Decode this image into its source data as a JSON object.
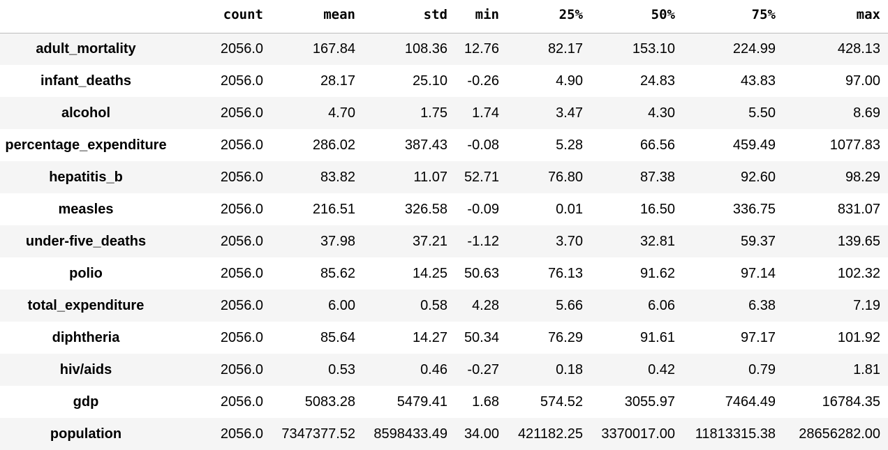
{
  "table": {
    "columns": [
      "",
      "count",
      "mean",
      "std",
      "min",
      "25%",
      "50%",
      "75%",
      "max"
    ],
    "rows": [
      {
        "label": "adult_mortality",
        "values": [
          "2056.0",
          "167.84",
          "108.36",
          "12.76",
          "82.17",
          "153.10",
          "224.99",
          "428.13"
        ]
      },
      {
        "label": "infant_deaths",
        "values": [
          "2056.0",
          "28.17",
          "25.10",
          "-0.26",
          "4.90",
          "24.83",
          "43.83",
          "97.00"
        ]
      },
      {
        "label": "alcohol",
        "values": [
          "2056.0",
          "4.70",
          "1.75",
          "1.74",
          "3.47",
          "4.30",
          "5.50",
          "8.69"
        ]
      },
      {
        "label": "percentage_expenditure",
        "values": [
          "2056.0",
          "286.02",
          "387.43",
          "-0.08",
          "5.28",
          "66.56",
          "459.49",
          "1077.83"
        ]
      },
      {
        "label": "hepatitis_b",
        "values": [
          "2056.0",
          "83.82",
          "11.07",
          "52.71",
          "76.80",
          "87.38",
          "92.60",
          "98.29"
        ]
      },
      {
        "label": "measles",
        "values": [
          "2056.0",
          "216.51",
          "326.58",
          "-0.09",
          "0.01",
          "16.50",
          "336.75",
          "831.07"
        ]
      },
      {
        "label": "under-five_deaths",
        "values": [
          "2056.0",
          "37.98",
          "37.21",
          "-1.12",
          "3.70",
          "32.81",
          "59.37",
          "139.65"
        ]
      },
      {
        "label": "polio",
        "values": [
          "2056.0",
          "85.62",
          "14.25",
          "50.63",
          "76.13",
          "91.62",
          "97.14",
          "102.32"
        ]
      },
      {
        "label": "total_expenditure",
        "values": [
          "2056.0",
          "6.00",
          "0.58",
          "4.28",
          "5.66",
          "6.06",
          "6.38",
          "7.19"
        ]
      },
      {
        "label": "diphtheria",
        "values": [
          "2056.0",
          "85.64",
          "14.27",
          "50.34",
          "76.29",
          "91.61",
          "97.17",
          "101.92"
        ]
      },
      {
        "label": "hiv/aids",
        "values": [
          "2056.0",
          "0.53",
          "0.46",
          "-0.27",
          "0.18",
          "0.42",
          "0.79",
          "1.81"
        ]
      },
      {
        "label": "gdp",
        "values": [
          "2056.0",
          "5083.28",
          "5479.41",
          "1.68",
          "574.52",
          "3055.97",
          "7464.49",
          "16784.35"
        ]
      },
      {
        "label": "population",
        "values": [
          "2056.0",
          "7347377.52",
          "8598433.49",
          "34.00",
          "421182.25",
          "3370017.00",
          "11813315.38",
          "28656282.00"
        ]
      }
    ]
  }
}
